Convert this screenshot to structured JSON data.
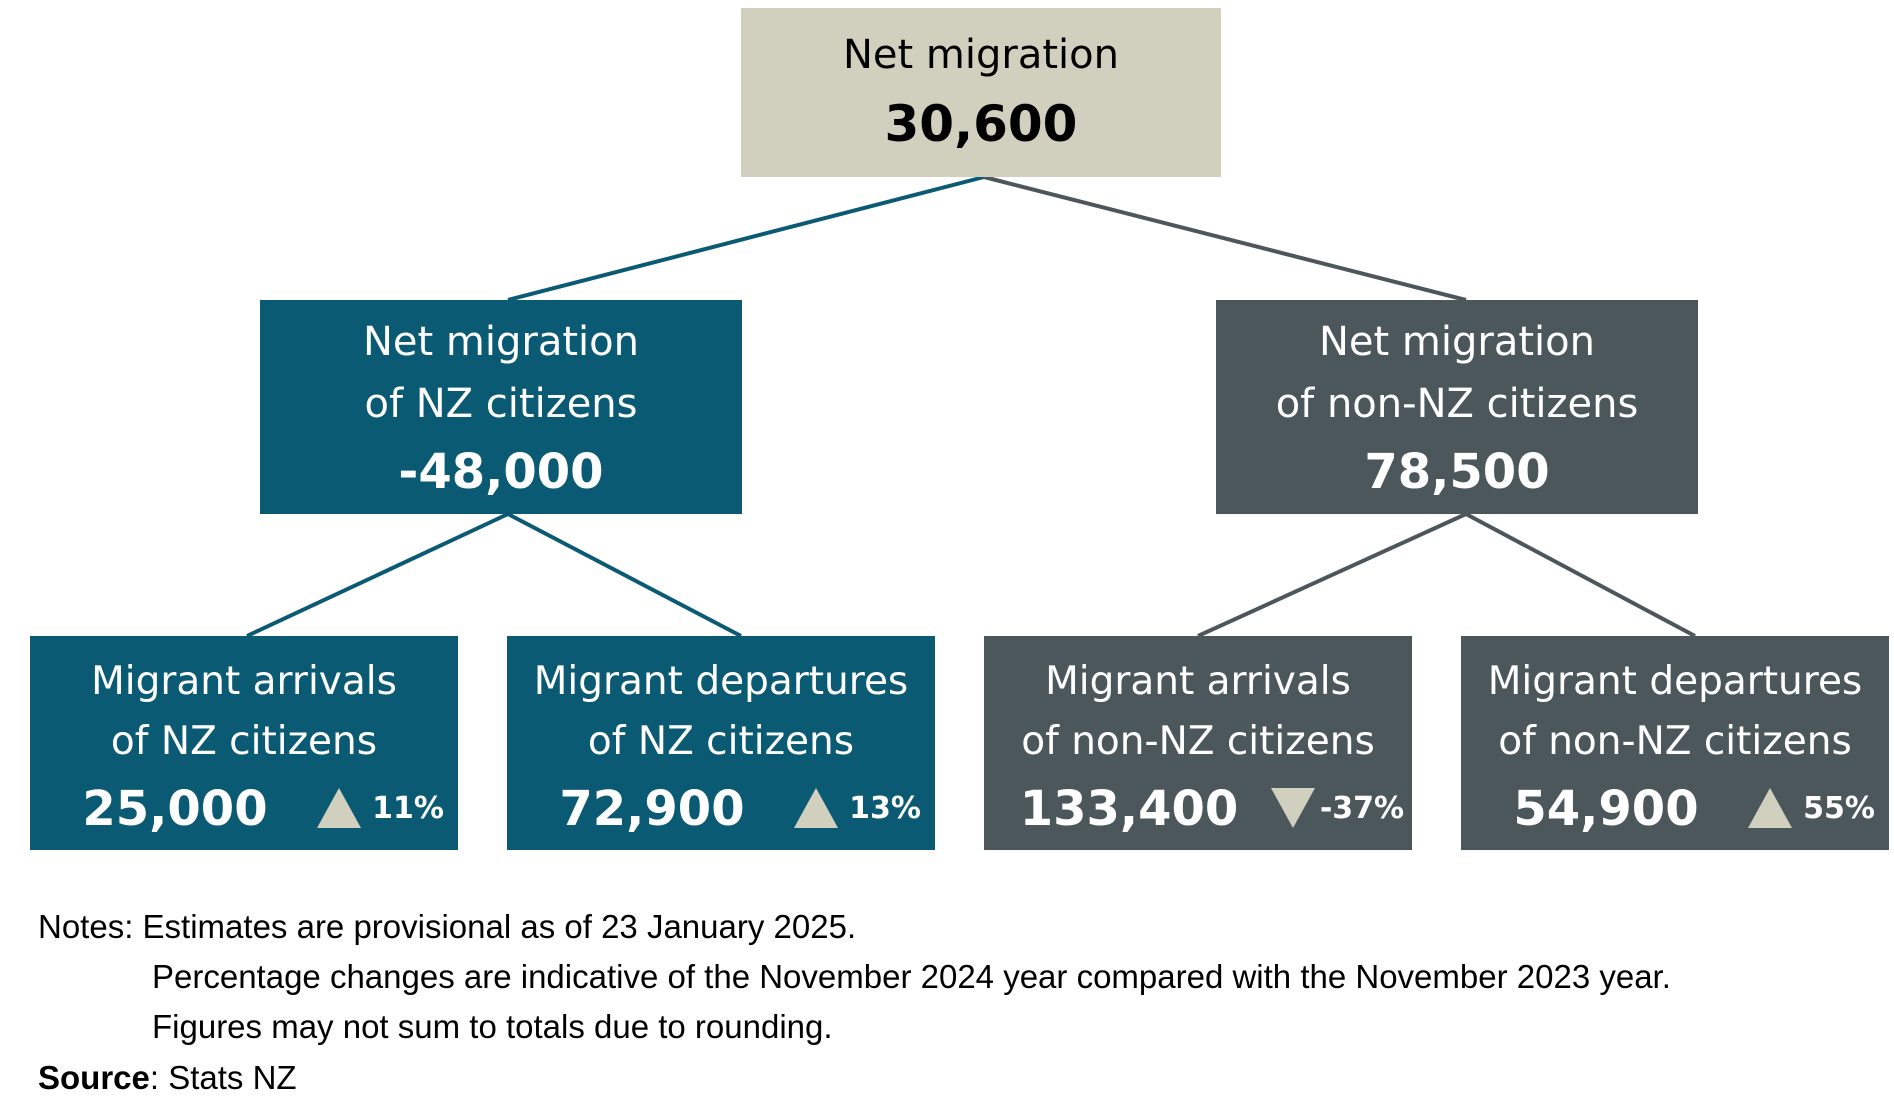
{
  "colors": {
    "top_box": "#d1d0bf",
    "nz_citizens": "#0b5a74",
    "non_nz_citizens": "#4b575b",
    "change_marker": "#d1d0bf"
  },
  "top": {
    "label": "Net migration",
    "value": "30,600"
  },
  "nz": {
    "label_line1": "Net migration",
    "label_line2": "of NZ citizens",
    "value": "-48,000",
    "arrivals": {
      "label_line1": "Migrant arrivals",
      "label_line2": "of NZ citizens",
      "value": "25,000",
      "change": "11%",
      "direction": "up",
      "icon": "triangle-up-icon"
    },
    "departures": {
      "label_line1": "Migrant departures",
      "label_line2": "of NZ citizens",
      "value": "72,900",
      "change": "13%",
      "direction": "up",
      "icon": "triangle-up-icon"
    }
  },
  "non_nz": {
    "label_line1": "Net migration",
    "label_line2": "of non-NZ citizens",
    "value": "78,500",
    "arrivals": {
      "label_line1": "Migrant arrivals",
      "label_line2": "of non-NZ citizens",
      "value": "133,400",
      "change": "-37%",
      "direction": "down",
      "icon": "triangle-down-icon"
    },
    "departures": {
      "label_line1": "Migrant departures",
      "label_line2": "of non-NZ citizens",
      "value": "54,900",
      "change": "55%",
      "direction": "up",
      "icon": "triangle-up-icon"
    }
  },
  "notes": {
    "prefix": "Notes:",
    "line1": "Estimates are provisional as of 23 January 2025.",
    "line2": "Percentage changes are indicative of the November 2024 year compared with the November 2023 year.",
    "line3": "Figures may not sum to totals due to rounding."
  },
  "source": {
    "label": "Source",
    "value": ": Stats NZ"
  }
}
